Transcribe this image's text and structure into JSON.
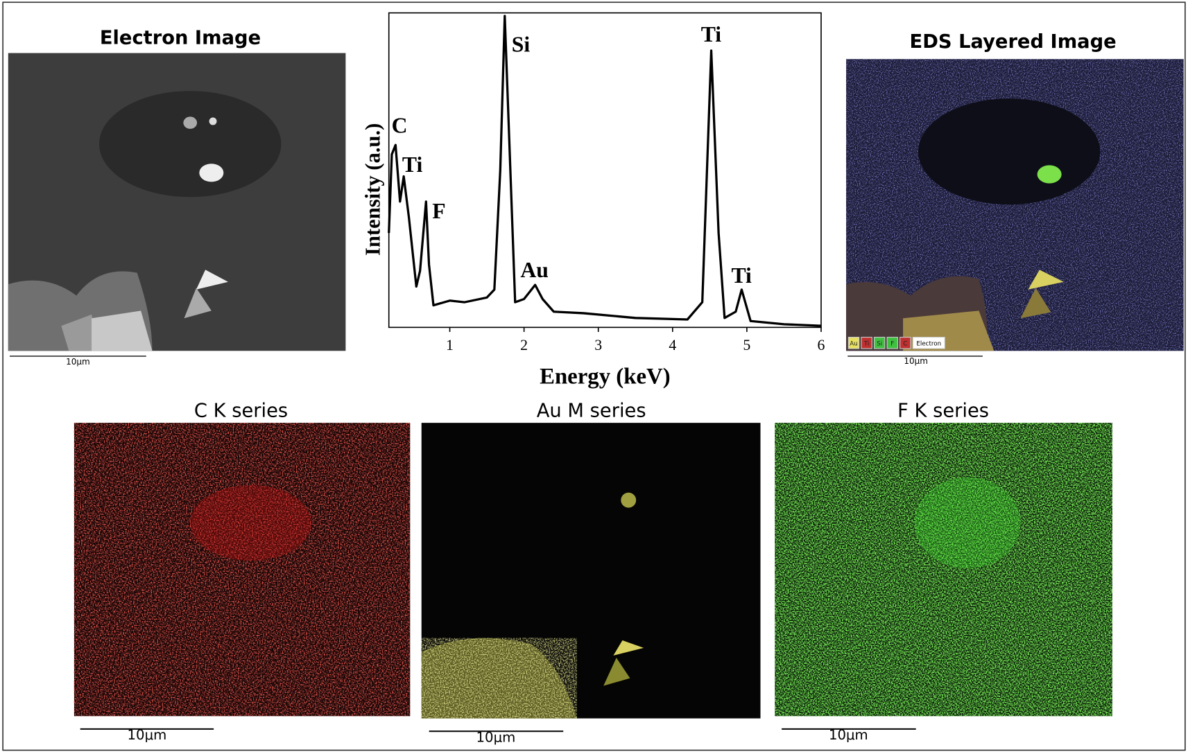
{
  "chart_data": {
    "type": "line",
    "x_label": "Energy (keV)",
    "y_label": "Intensity (a.u.)",
    "color": "#000000",
    "x": [
      0.18,
      0.22,
      0.27,
      0.33,
      0.38,
      0.45,
      0.55,
      0.6,
      0.68,
      0.72,
      0.78,
      1.0,
      1.2,
      1.5,
      1.6,
      1.68,
      1.74,
      1.8,
      1.88,
      2.0,
      2.1,
      2.15,
      2.25,
      2.4,
      2.8,
      3.5,
      4.2,
      4.4,
      4.52,
      4.62,
      4.7,
      4.85,
      4.93,
      5.05,
      5.5,
      6.0
    ],
    "values": [
      30,
      55,
      58,
      40,
      48,
      35,
      13,
      18,
      40,
      20,
      7,
      8.5,
      8,
      9.5,
      12,
      50,
      99,
      60,
      8,
      9,
      12,
      13.5,
      9,
      5,
      4.5,
      3,
      2.5,
      8,
      88,
      30,
      3,
      5,
      12,
      2,
      1,
      0.5
    ],
    "xlim": [
      0.18,
      6
    ],
    "ylim": [
      0,
      100
    ],
    "xticks": [
      1,
      2,
      3,
      4,
      5,
      6
    ],
    "annotations": [
      "C",
      "Ti",
      "F",
      "Si",
      "Au",
      "Ti",
      "Ti"
    ]
  },
  "panels": [
    {
      "title": "Electron Image",
      "scale_bar": "10μm"
    },
    {
      "title": "EDS Layered Image",
      "scale_bar": "10μm",
      "legend": [
        "Au",
        "Ti",
        "Si",
        "F",
        "C",
        "Electron"
      ]
    },
    {
      "title": "C K series",
      "scale_bar": "10μm"
    },
    {
      "title": "Au M series",
      "scale_bar": "10μm"
    },
    {
      "title": "F K series",
      "scale_bar": "10μm"
    }
  ]
}
